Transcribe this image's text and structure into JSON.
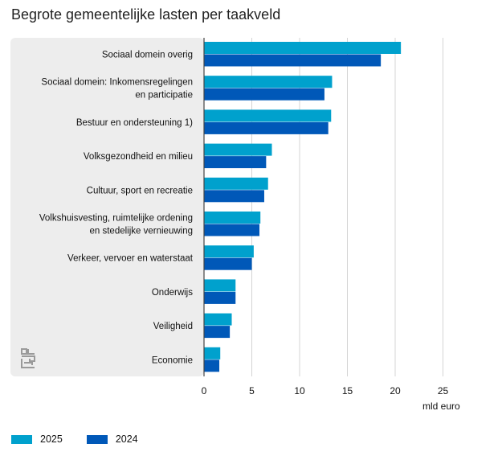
{
  "chart_data": {
    "type": "bar",
    "orientation": "horizontal",
    "title": "Begrote gemeentelijke lasten per taakveld",
    "xlabel": "mld euro",
    "xlim": [
      0,
      27
    ],
    "xticks": [
      0,
      5,
      10,
      15,
      20,
      25
    ],
    "grid": true,
    "legend_position": "bottom-left",
    "categories": [
      [
        "Sociaal domein overig"
      ],
      [
        "Sociaal domein: Inkomensregelingen",
        "en participatie"
      ],
      [
        "Bestuur en ondersteuning 1)"
      ],
      [
        "Volksgezondheid en milieu"
      ],
      [
        "Cultuur, sport en recreatie"
      ],
      [
        "Volkshuisvesting, ruimtelijke ordening",
        "en stedelijke vernieuwing"
      ],
      [
        "Verkeer, vervoer en waterstaat"
      ],
      [
        "Onderwijs"
      ],
      [
        "Veiligheid"
      ],
      [
        "Economie"
      ]
    ],
    "series": [
      {
        "name": "2025",
        "color": "#00a1cd",
        "values": [
          20.6,
          13.4,
          13.3,
          7.1,
          6.7,
          5.9,
          5.2,
          3.3,
          2.9,
          1.7
        ]
      },
      {
        "name": "2024",
        "color": "#0058b8",
        "values": [
          18.5,
          12.6,
          13.0,
          6.5,
          6.3,
          5.8,
          5.0,
          3.3,
          2.7,
          1.6
        ]
      }
    ]
  },
  "logo": {
    "icon": "cbs-logo-icon",
    "color": "#9a9a9a"
  }
}
